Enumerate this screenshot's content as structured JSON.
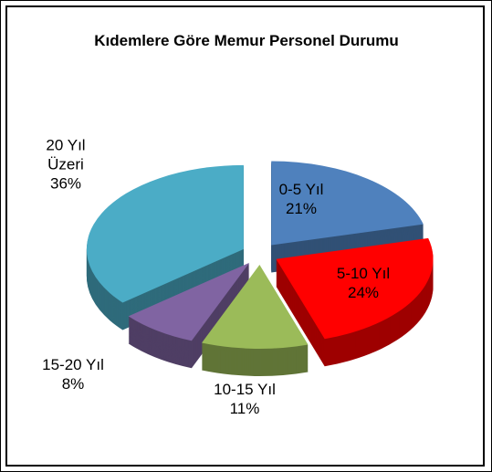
{
  "chart_data": {
    "type": "pie",
    "title": "Kıdemlere Göre Memur Personel Durumu",
    "categories": [
      "0-5 Yıl",
      "5-10 Yıl",
      "10-15 Yıl",
      "15-20 Yıl",
      "20 Yıl Üzeri"
    ],
    "values": [
      21,
      24,
      11,
      8,
      36
    ],
    "value_labels": [
      "21%",
      "24%",
      "11%",
      "8%",
      "36%"
    ],
    "colors": [
      "#4f81bd",
      "#ff0000",
      "#9bbb59",
      "#8064a2",
      "#4bacc6"
    ]
  }
}
